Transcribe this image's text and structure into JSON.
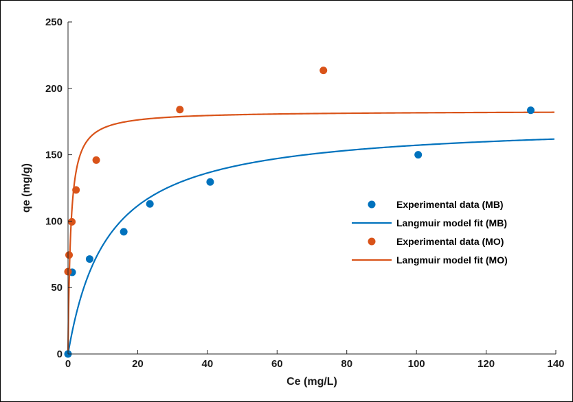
{
  "chart_data": {
    "type": "scatter",
    "title": "",
    "xlabel": "Ce (mg/L)",
    "ylabel": "qe (mg/g)",
    "xlim": [
      0,
      140
    ],
    "ylim": [
      0,
      250
    ],
    "xticks": [
      0,
      20,
      40,
      60,
      80,
      100,
      120,
      140
    ],
    "yticks": [
      0,
      50,
      100,
      150,
      200,
      250
    ],
    "grid": false,
    "legend_position": "center-right",
    "series": [
      {
        "name": "Experimental data (MB)",
        "kind": "scatter",
        "color": "#0072BD",
        "x": [
          0,
          1.2,
          6.2,
          16,
          23.5,
          40.8,
          100.5,
          132.8
        ],
        "y": [
          0,
          61.5,
          71.5,
          92,
          113,
          129.5,
          150,
          183.5
        ]
      },
      {
        "name": "Langmuir model fit (MB)",
        "kind": "line",
        "color": "#0072BD",
        "model": "langmuir",
        "qmax": 175,
        "KL": 0.088
      },
      {
        "name": "Experimental data (MO)",
        "kind": "scatter",
        "color": "#D95319",
        "x": [
          0,
          0.3,
          1.1,
          2.3,
          8.1,
          32.1,
          73.3
        ],
        "y": [
          62,
          74.5,
          99.5,
          123.5,
          146,
          184,
          213.5
        ]
      },
      {
        "name": "Langmuir model fit (MO)",
        "kind": "line",
        "color": "#D95319",
        "model": "langmuir",
        "qmax": 183,
        "KL": 1.3
      }
    ]
  }
}
